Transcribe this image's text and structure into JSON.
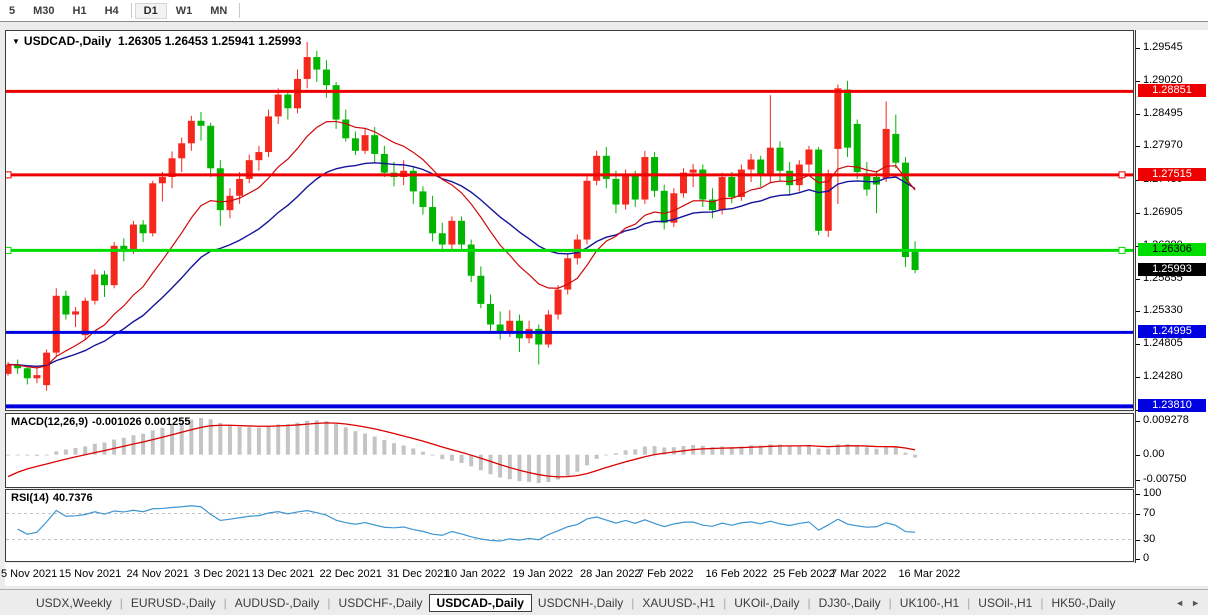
{
  "toolbar": {
    "timeframes": [
      "5",
      "M30",
      "H1",
      "H4",
      "D1",
      "W1",
      "MN"
    ],
    "active": "D1"
  },
  "chart": {
    "title": "USDCAD-,Daily",
    "ohlc_line": "1.26305 1.26453 1.25941 1.25993",
    "dropdown_glyph": "▼"
  },
  "colors": {
    "candle_up": "#f5281e",
    "candle_down": "#00b400",
    "ma_fast": "#cf0a0a",
    "ma_slow": "#14149b",
    "macd_bar": "#c4c4c4",
    "macd_signal": "#dd0000",
    "rsi_line": "#3e95d2",
    "level_dashed": "#c3c3c3"
  },
  "chart_data": {
    "type": "candlestick",
    "symbol": "USDCAD-",
    "timeframe": "Daily",
    "price_axis_ticks": [
      "1.29545",
      "1.29020",
      "1.28495",
      "1.27970",
      "1.27430",
      "1.26905",
      "1.26380",
      "1.25855",
      "1.25330",
      "1.24805",
      "1.24280",
      "1.23755"
    ],
    "levels": [
      {
        "price": 1.28851,
        "label": "1.28851",
        "color": "#ef0000",
        "text_color": "#ffffff",
        "width": 3,
        "handles": false
      },
      {
        "price": 1.27515,
        "label": "1.27515",
        "color": "#ef0000",
        "text_color": "#ffffff",
        "width": 3,
        "handles": true
      },
      {
        "price": 1.26306,
        "label": "1.26306",
        "color": "#00dd00",
        "text_color": "#000000",
        "width": 3,
        "handles": true
      },
      {
        "price": 1.24995,
        "label": "1.24995",
        "color": "#0000e1",
        "text_color": "#ffffff",
        "width": 3,
        "handles": false
      },
      {
        "price": 1.2381,
        "label": "1.23810",
        "color": "#0000e1",
        "text_color": "#ffffff",
        "width": 4,
        "handles": false
      }
    ],
    "current_price": {
      "value": 1.25993,
      "label": "1.25993",
      "bg": "#000000",
      "text_color": "#ffffff"
    },
    "candles": [
      [
        1.2433,
        1.2452,
        1.243,
        1.2448
      ],
      [
        1.2448,
        1.2456,
        1.2433,
        1.2442
      ],
      [
        1.2442,
        1.2446,
        1.2416,
        1.2426
      ],
      [
        1.2426,
        1.2442,
        1.2418,
        1.2431
      ],
      [
        1.2415,
        1.2472,
        1.2406,
        1.2467
      ],
      [
        1.2467,
        1.257,
        1.2462,
        1.2558
      ],
      [
        1.2558,
        1.2566,
        1.252,
        1.2528
      ],
      [
        1.2528,
        1.254,
        1.2508,
        1.2533
      ],
      [
        1.2495,
        1.2555,
        1.2488,
        1.255
      ],
      [
        1.255,
        1.26,
        1.2544,
        1.2592
      ],
      [
        1.2592,
        1.2598,
        1.2556,
        1.2575
      ],
      [
        1.2575,
        1.2644,
        1.257,
        1.2638
      ],
      [
        1.2638,
        1.265,
        1.2613,
        1.263
      ],
      [
        1.263,
        1.2678,
        1.2625,
        1.2672
      ],
      [
        1.2672,
        1.2679,
        1.2644,
        1.2658
      ],
      [
        1.2658,
        1.2742,
        1.2653,
        1.2738
      ],
      [
        1.2738,
        1.2756,
        1.2709,
        1.2748
      ],
      [
        1.2748,
        1.2789,
        1.273,
        1.2778
      ],
      [
        1.2778,
        1.2811,
        1.2756,
        1.2802
      ],
      [
        1.2802,
        1.2846,
        1.279,
        1.2838
      ],
      [
        1.2838,
        1.2852,
        1.2806,
        1.283
      ],
      [
        1.283,
        1.2835,
        1.2748,
        1.2762
      ],
      [
        1.2762,
        1.2775,
        1.267,
        1.2695
      ],
      [
        1.2695,
        1.273,
        1.2682,
        1.2718
      ],
      [
        1.2718,
        1.2756,
        1.2705,
        1.2745
      ],
      [
        1.2745,
        1.2784,
        1.2738,
        1.2775
      ],
      [
        1.2775,
        1.2798,
        1.2758,
        1.2788
      ],
      [
        1.2788,
        1.2856,
        1.278,
        1.2845
      ],
      [
        1.2845,
        1.289,
        1.2833,
        1.288
      ],
      [
        1.288,
        1.2888,
        1.284,
        1.2858
      ],
      [
        1.2858,
        1.292,
        1.285,
        1.2905
      ],
      [
        1.2905,
        1.2964,
        1.289,
        1.294
      ],
      [
        1.294,
        1.295,
        1.29,
        1.292
      ],
      [
        1.292,
        1.2935,
        1.2875,
        1.2895
      ],
      [
        1.2895,
        1.29,
        1.2825,
        1.284
      ],
      [
        1.284,
        1.2856,
        1.2805,
        1.281
      ],
      [
        1.281,
        1.2821,
        1.2783,
        1.279
      ],
      [
        1.279,
        1.2825,
        1.2785,
        1.2815
      ],
      [
        1.2815,
        1.2828,
        1.277,
        1.2785
      ],
      [
        1.2785,
        1.2798,
        1.2748,
        1.2755
      ],
      [
        1.2755,
        1.2772,
        1.2733,
        1.2748
      ],
      [
        1.2748,
        1.2775,
        1.2735,
        1.2758
      ],
      [
        1.2758,
        1.2765,
        1.2705,
        1.2725
      ],
      [
        1.2725,
        1.2733,
        1.2688,
        1.27
      ],
      [
        1.27,
        1.2718,
        1.2645,
        1.2658
      ],
      [
        1.2658,
        1.2675,
        1.2628,
        1.264
      ],
      [
        1.264,
        1.2685,
        1.263,
        1.2678
      ],
      [
        1.2678,
        1.2685,
        1.263,
        1.264
      ],
      [
        1.264,
        1.2648,
        1.258,
        1.259
      ],
      [
        1.259,
        1.2605,
        1.2538,
        1.2545
      ],
      [
        1.2545,
        1.256,
        1.2502,
        1.2512
      ],
      [
        1.2512,
        1.2533,
        1.2488,
        1.2498
      ],
      [
        1.2498,
        1.2535,
        1.2492,
        1.2518
      ],
      [
        1.2518,
        1.2528,
        1.2468,
        1.249
      ],
      [
        1.249,
        1.2518,
        1.2482,
        1.2505
      ],
      [
        1.2505,
        1.2512,
        1.2448,
        1.248
      ],
      [
        1.248,
        1.2535,
        1.2475,
        1.2528
      ],
      [
        1.2528,
        1.2575,
        1.252,
        1.2568
      ],
      [
        1.2568,
        1.2625,
        1.256,
        1.2618
      ],
      [
        1.2618,
        1.2656,
        1.2608,
        1.2648
      ],
      [
        1.2648,
        1.275,
        1.264,
        1.2742
      ],
      [
        1.2742,
        1.279,
        1.2735,
        1.2782
      ],
      [
        1.2782,
        1.2796,
        1.273,
        1.2745
      ],
      [
        1.2745,
        1.2758,
        1.269,
        1.2704
      ],
      [
        1.2704,
        1.276,
        1.2696,
        1.2752
      ],
      [
        1.2752,
        1.2758,
        1.27,
        1.2712
      ],
      [
        1.2712,
        1.279,
        1.2705,
        1.278
      ],
      [
        1.278,
        1.2788,
        1.2716,
        1.2726
      ],
      [
        1.2726,
        1.2736,
        1.2664,
        1.2675
      ],
      [
        1.2675,
        1.273,
        1.2668,
        1.2722
      ],
      [
        1.2722,
        1.2762,
        1.2715,
        1.2755
      ],
      [
        1.2755,
        1.2769,
        1.2732,
        1.276
      ],
      [
        1.276,
        1.2768,
        1.27,
        1.2712
      ],
      [
        1.2712,
        1.273,
        1.2682,
        1.2695
      ],
      [
        1.2695,
        1.2755,
        1.2688,
        1.2748
      ],
      [
        1.2748,
        1.2756,
        1.2706,
        1.2716
      ],
      [
        1.2716,
        1.2768,
        1.271,
        1.276
      ],
      [
        1.276,
        1.2785,
        1.274,
        1.2776
      ],
      [
        1.2776,
        1.2782,
        1.2732,
        1.275
      ],
      [
        1.275,
        1.2879,
        1.274,
        1.2795
      ],
      [
        1.2795,
        1.2805,
        1.2742,
        1.2758
      ],
      [
        1.2758,
        1.2772,
        1.2718,
        1.2735
      ],
      [
        1.2735,
        1.2775,
        1.2725,
        1.2768
      ],
      [
        1.2768,
        1.2798,
        1.2755,
        1.2792
      ],
      [
        1.2792,
        1.2796,
        1.2655,
        1.2662
      ],
      [
        1.2662,
        1.276,
        1.2652,
        1.2754
      ],
      [
        1.2793,
        1.2896,
        1.2705,
        1.289
      ],
      [
        1.2888,
        1.2902,
        1.278,
        1.2795
      ],
      [
        1.2833,
        1.284,
        1.2745,
        1.2756
      ],
      [
        1.2754,
        1.2772,
        1.2718,
        1.2728
      ],
      [
        1.2748,
        1.2758,
        1.269,
        1.2736
      ],
      [
        1.2746,
        1.2869,
        1.274,
        1.2825
      ],
      [
        1.2817,
        1.2848,
        1.2762,
        1.2771
      ],
      [
        1.2771,
        1.278,
        1.2604,
        1.262
      ],
      [
        1.26305,
        1.26453,
        1.25941,
        1.25993
      ]
    ],
    "date_labels": [
      {
        "index": 0,
        "text": "5 Nov 2021"
      },
      {
        "index": 6,
        "text": "15 Nov 2021"
      },
      {
        "index": 13,
        "text": "24 Nov 2021"
      },
      {
        "index": 20,
        "text": "3 Dec 2021"
      },
      {
        "index": 26,
        "text": "13 Dec 2021"
      },
      {
        "index": 33,
        "text": "22 Dec 2021"
      },
      {
        "index": 40,
        "text": "31 Dec 2021"
      },
      {
        "index": 46,
        "text": "10 Jan 2022"
      },
      {
        "index": 53,
        "text": "19 Jan 2022"
      },
      {
        "index": 60,
        "text": "28 Jan 2022"
      },
      {
        "index": 66,
        "text": "7 Feb 2022"
      },
      {
        "index": 73,
        "text": "16 Feb 2022"
      },
      {
        "index": 80,
        "text": "25 Feb 2022"
      },
      {
        "index": 86,
        "text": "7 Mar 2022"
      },
      {
        "index": 93,
        "text": "16 Mar 2022"
      }
    ],
    "indicators": {
      "macd": {
        "label": "MACD(12,26,9)",
        "values": "-0.001026 0.001255",
        "axis_max": "0.009278",
        "axis_zero": "0.00",
        "axis_min": "-0.00750"
      },
      "rsi": {
        "label": "RSI(14)",
        "value": "40.7376",
        "axis": [
          "100",
          "70",
          "30",
          "0"
        ],
        "level_lines": [
          70,
          30
        ]
      }
    }
  },
  "tabs": {
    "items": [
      {
        "label": "USDX,Weekly",
        "active": false
      },
      {
        "label": "EURUSD-,Daily",
        "active": false
      },
      {
        "label": "AUDUSD-,Daily",
        "active": false
      },
      {
        "label": "USDCHF-,Daily",
        "active": false
      },
      {
        "label": "USDCAD-,Daily",
        "active": true
      },
      {
        "label": "USDCNH-,Daily",
        "active": false
      },
      {
        "label": "XAUUSD-,H1",
        "active": false
      },
      {
        "label": "UKOil-,Daily",
        "active": false
      },
      {
        "label": "DJ30-,Daily",
        "active": false
      },
      {
        "label": "UK100-,H1",
        "active": false
      },
      {
        "label": "USOil-,H1",
        "active": false
      },
      {
        "label": "HK50-,Daily",
        "active": false
      }
    ],
    "scroll_left_glyph": "◄",
    "scroll_right_glyph": "►"
  }
}
